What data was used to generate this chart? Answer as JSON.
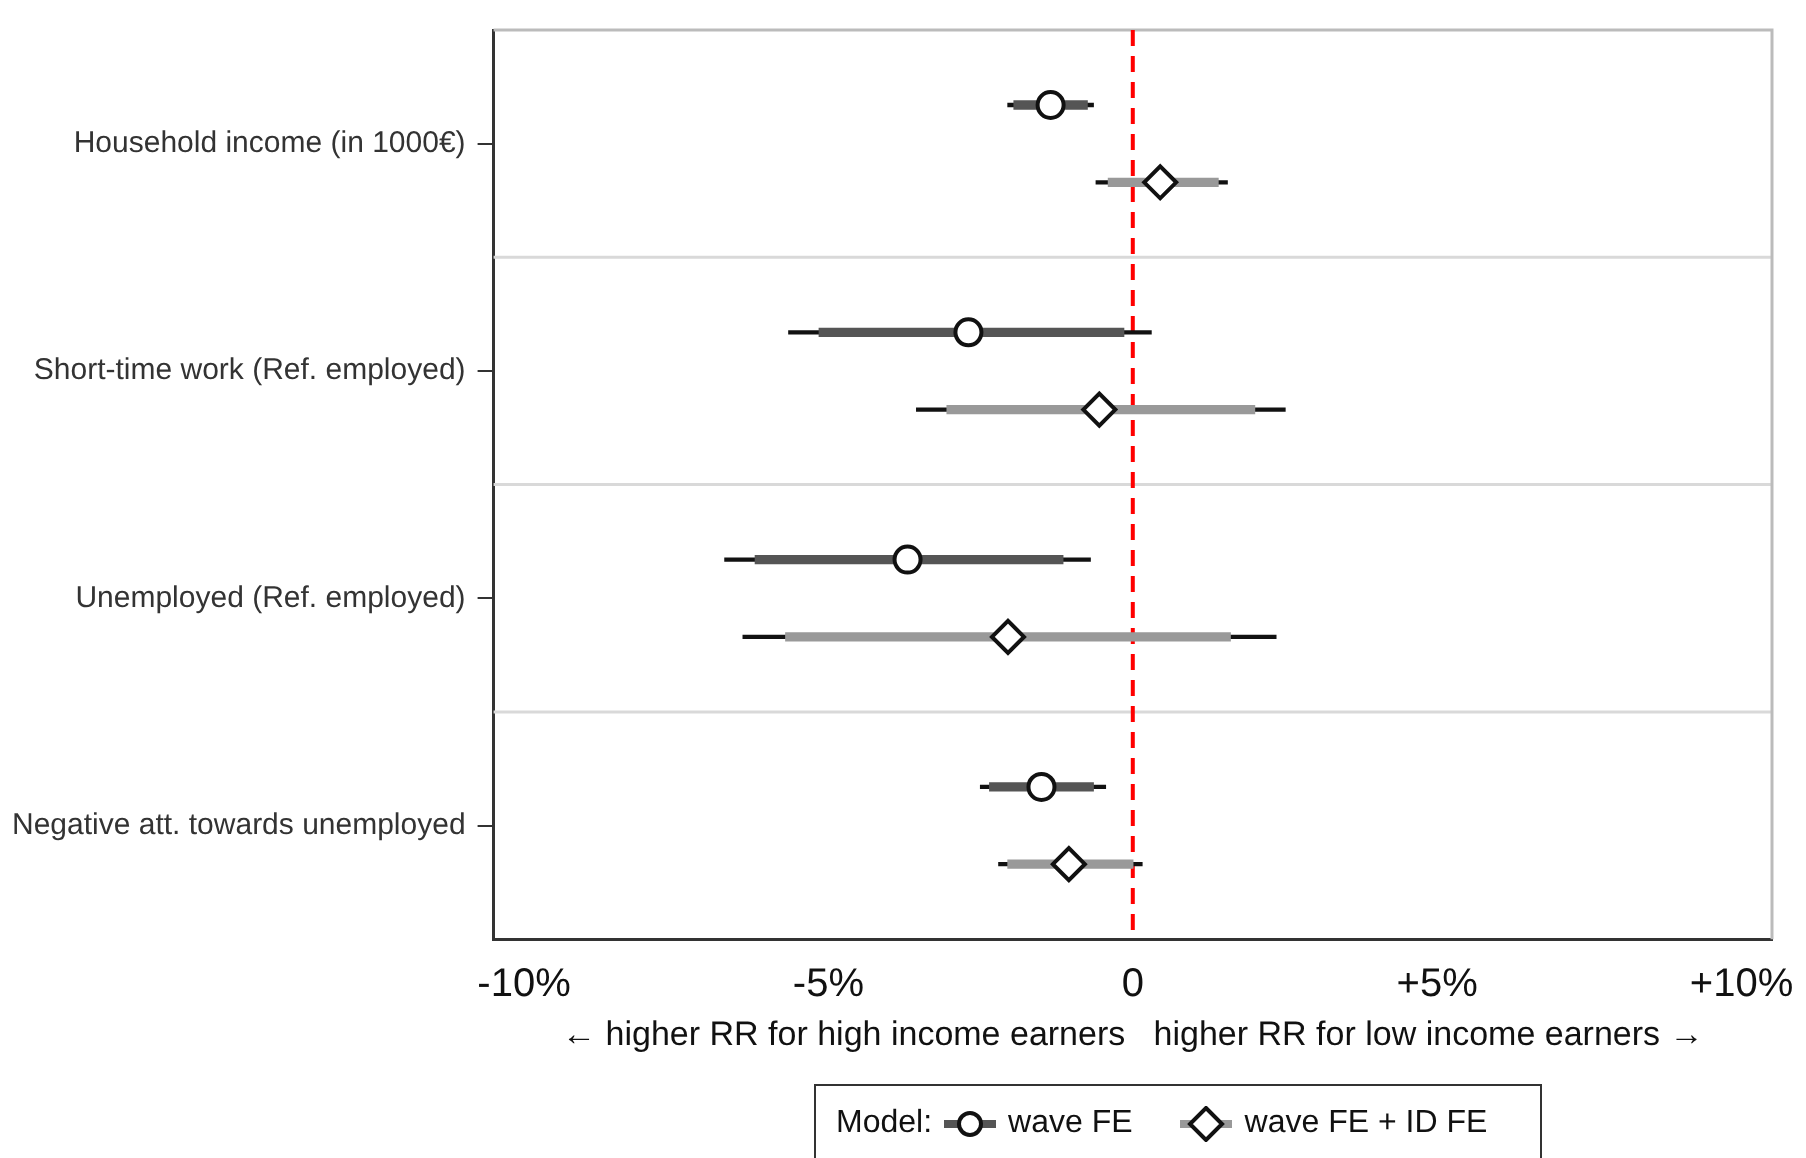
{
  "chart_data": {
    "type": "box",
    "orientation": "horizontal",
    "categories": [
      "Household income (in 1000€)",
      "Short-time work (Ref. employed)",
      "Unemployed (Ref. employed)",
      "Negative att. towards unemployed"
    ],
    "xlabel": "← higher RR for high income earners   higher RR for low income earners →",
    "xlim": [
      -10.5,
      10.5
    ],
    "xticks": [
      {
        "value": -10,
        "label": "-10%"
      },
      {
        "value": -5,
        "label": "-5%"
      },
      0,
      {
        "value": 5,
        "label": "+5%"
      },
      {
        "value": 10,
        "label": "+10%"
      }
    ],
    "legend_title": "Model:",
    "legend": "bottom",
    "grid": false,
    "ref_lines": [
      {
        "axis": "x",
        "value": 0,
        "color": "#ff0000",
        "line_style": "dashed"
      }
    ],
    "series": [
      {
        "name": "wave FE",
        "color": "#555555",
        "marker": "circle",
        "boxes": [
          {
            "low": -2.05,
            "q1": -1.95,
            "median": -1.35,
            "q3": -0.75,
            "high": -0.65
          },
          {
            "low": -5.65,
            "q1": -5.15,
            "median": -2.7,
            "q3": -0.15,
            "high": 0.3
          },
          {
            "low": -6.7,
            "q1": -6.2,
            "median": -3.7,
            "q3": -1.15,
            "high": -0.7
          },
          {
            "low": -2.5,
            "q1": -2.35,
            "median": -1.5,
            "q3": -0.65,
            "high": -0.45
          }
        ]
      },
      {
        "name": "wave FE + ID FE",
        "color": "#999999",
        "marker": "diamond",
        "boxes": [
          {
            "low": -0.6,
            "q1": -0.4,
            "median": 0.45,
            "q3": 1.4,
            "high": 1.55
          },
          {
            "low": -3.55,
            "q1": -3.05,
            "median": -0.55,
            "q3": 2.0,
            "high": 2.5
          },
          {
            "low": -6.4,
            "q1": -5.7,
            "median": -2.05,
            "q3": 1.6,
            "high": 2.35
          },
          {
            "low": -2.2,
            "q1": -2.05,
            "median": -1.05,
            "q3": 0.0,
            "high": 0.15
          }
        ]
      }
    ]
  }
}
